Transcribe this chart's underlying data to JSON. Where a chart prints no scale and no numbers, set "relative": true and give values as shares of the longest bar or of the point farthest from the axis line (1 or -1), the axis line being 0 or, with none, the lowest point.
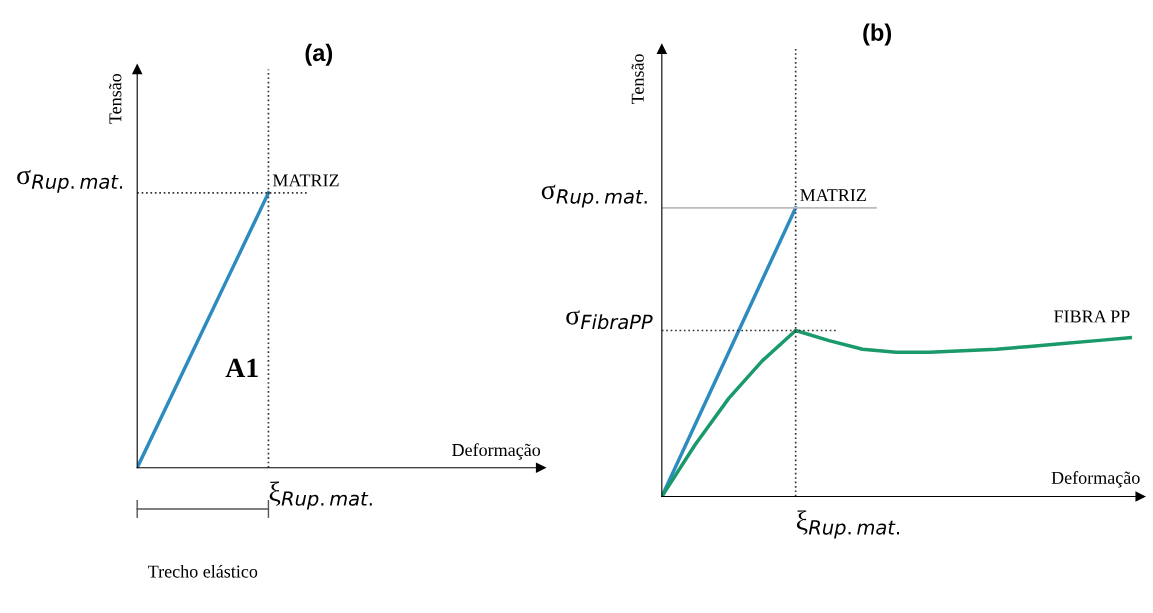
{
  "chart_data": [
    {
      "type": "line",
      "title": "(a)",
      "xlabel": "Deformação",
      "ylabel": "Tensão",
      "relative": true,
      "legend": false,
      "marker": "none",
      "line_style": "solid",
      "categories": [
        null,
        null,
        null,
        null,
        null,
        null,
        null,
        null,
        null,
        null,
        null,
        null,
        null
      ],
      "series": [
        {
          "name": "MATRIZ",
          "color": "#2e8bc0",
          "values": [
            0,
            0.25,
            0.5,
            0.75,
            1,
            null,
            null,
            null,
            null,
            null,
            null,
            null,
            null
          ]
        }
      ],
      "ref_lines": [
        {
          "axis": "y",
          "value": 1,
          "label": "σ$_{Rup.mat.}$",
          "line_style": "dotted",
          "color": "#333333"
        }
      ],
      "annotations": [
        "A1",
        "Trecho elástico",
        "ξ$_{Rup.mat.}$"
      ]
    },
    {
      "type": "line",
      "title": "(b)",
      "xlabel": "Deformação",
      "ylabel": "Tensão",
      "relative": true,
      "legend": false,
      "marker": "none",
      "line_style": "solid",
      "categories": [
        null,
        null,
        null,
        null,
        null,
        null,
        null,
        null,
        null,
        null,
        null,
        null,
        null,
        null,
        null
      ],
      "series": [
        {
          "name": "MATRIZ",
          "color": "#2e8bc0",
          "values": [
            0,
            0.25,
            0.5,
            0.75,
            1,
            null,
            null,
            null,
            null,
            null,
            null,
            null,
            null,
            null,
            null
          ]
        },
        {
          "name": "FIBRA PP",
          "color": "#1a9a6a",
          "values": [
            0,
            0.18,
            0.34,
            0.47,
            0.575,
            0.54,
            0.51,
            0.5,
            0.5,
            0.505,
            0.51,
            0.52,
            0.53,
            0.54,
            0.55
          ]
        }
      ],
      "ref_lines": [
        {
          "axis": "y",
          "value": 1,
          "label": "σ$_{Rup.mat.}$",
          "line_style": "solid",
          "color": "#bbbbbb"
        },
        {
          "axis": "y",
          "value": 0.575,
          "label": "σ$_{FibraPP}$",
          "line_style": "dotted",
          "color": "#333333"
        }
      ],
      "annotations": [
        "ξ$_{Rup.mat.}$"
      ]
    }
  ]
}
